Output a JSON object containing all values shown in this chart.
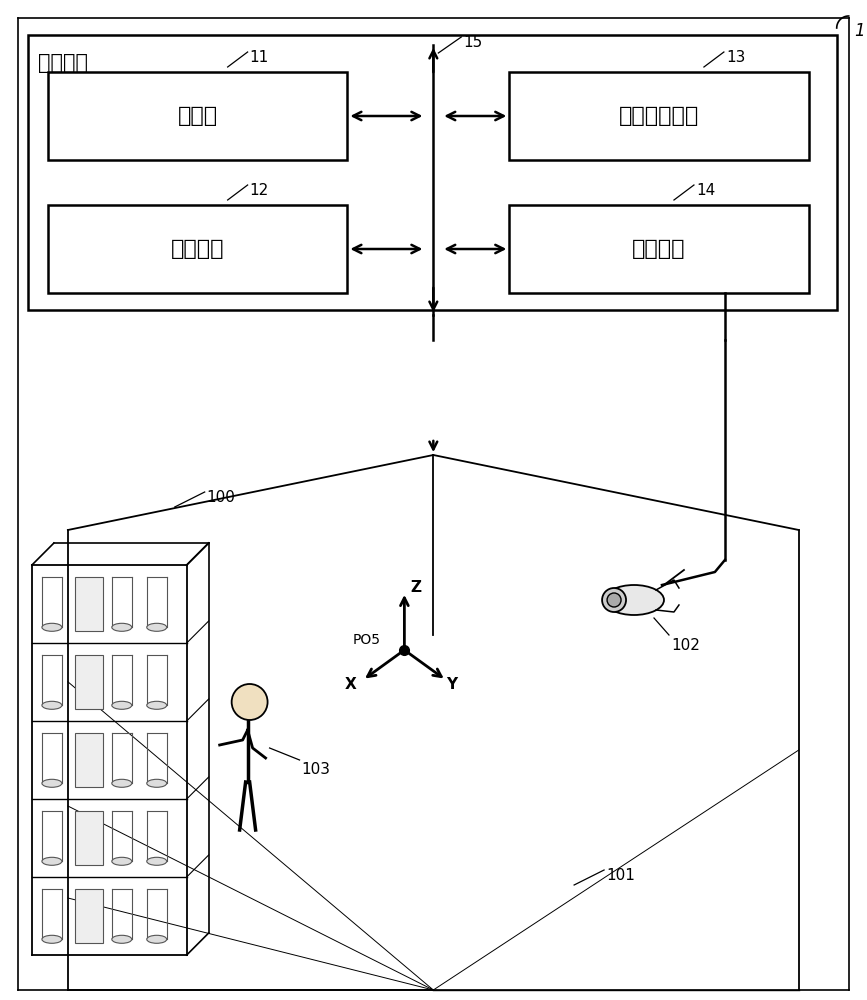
{
  "bg_color": "#ffffff",
  "title_box_label": "追踪装置",
  "box11_label": "处理器",
  "box12_label": "主存储器",
  "box13_label": "辅助存储单元",
  "box14_label": "通信接口",
  "ref11": "11",
  "ref12": "12",
  "ref13": "13",
  "ref14": "14",
  "ref15": "15",
  "ref1": "1",
  "ref100": "100",
  "ref101": "101",
  "ref102": "102",
  "ref103": "103",
  "pos5_label": "PO5",
  "x_label": "X",
  "y_label": "Y",
  "z_label": "Z"
}
